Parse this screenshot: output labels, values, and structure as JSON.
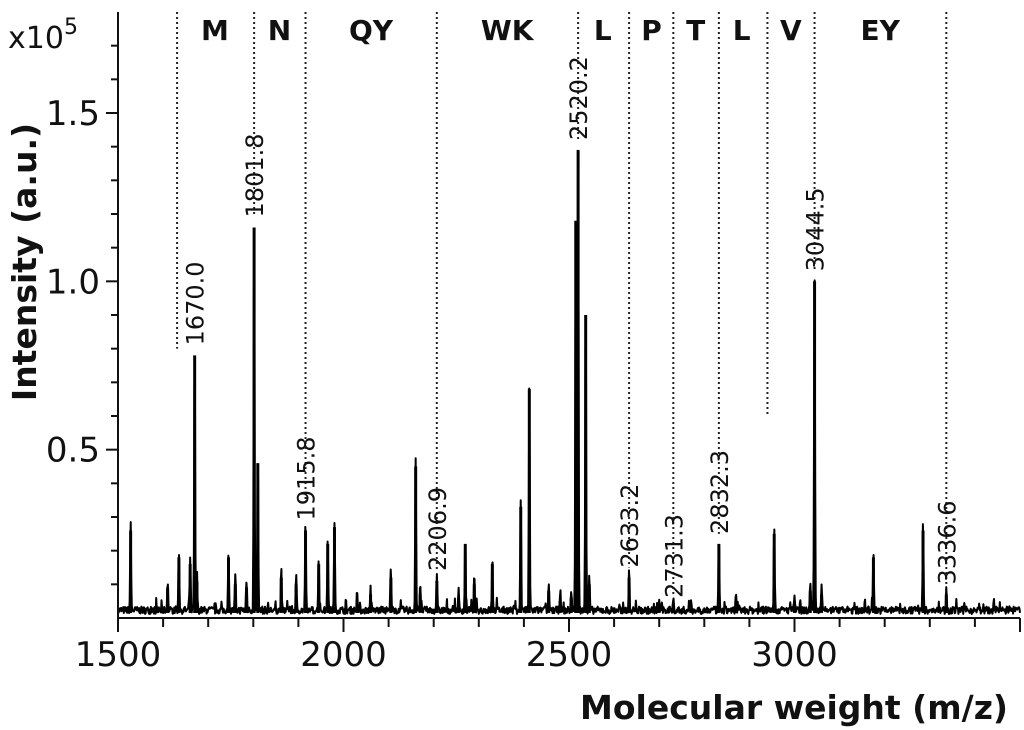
{
  "chart_data": {
    "type": "line",
    "title": "",
    "xlabel": "Molecular weight (m/z)",
    "ylabel": "Intensity (a.u.)",
    "y_multiplier": "x10",
    "y_multiplier_exponent": "5",
    "xlim": [
      1500,
      3500
    ],
    "ylim": [
      0,
      1.8
    ],
    "x_ticks": [
      1500,
      2000,
      2500,
      3000
    ],
    "x_tick_labels": [
      "1500",
      "2000",
      "2500",
      "3000"
    ],
    "y_ticks": [
      0.5,
      1.0,
      1.5
    ],
    "y_tick_labels": [
      "0.5",
      "1.0",
      "1.5"
    ],
    "grid": false,
    "line_color": "#000000",
    "labeled_peaks": [
      {
        "x": 1670.0,
        "label": "1670.0",
        "y": 0.78
      },
      {
        "x": 1801.8,
        "label": "1801.8",
        "y": 1.16
      },
      {
        "x": 1915.8,
        "label": "1915.8",
        "y": 0.26
      },
      {
        "x": 2206.9,
        "label": "2206.9",
        "y": 0.11
      },
      {
        "x": 2520.2,
        "label": "2520.2",
        "y": 1.39
      },
      {
        "x": 2633.2,
        "label": "2633.2",
        "y": 0.12
      },
      {
        "x": 2731.3,
        "label": "2731.3",
        "y": 0.03
      },
      {
        "x": 2832.3,
        "label": "2832.3",
        "y": 0.22
      },
      {
        "x": 3044.5,
        "label": "3044.5",
        "y": 1.0
      },
      {
        "x": 3336.6,
        "label": "3336.6",
        "y": 0.07
      }
    ],
    "other_peaks": [
      {
        "x": 1528,
        "y": 0.26
      },
      {
        "x": 1610,
        "y": 0.09
      },
      {
        "x": 1635,
        "y": 0.18
      },
      {
        "x": 1660,
        "y": 0.16
      },
      {
        "x": 1675,
        "y": 0.11
      },
      {
        "x": 1745,
        "y": 0.18
      },
      {
        "x": 1760,
        "y": 0.1
      },
      {
        "x": 1785,
        "y": 0.09
      },
      {
        "x": 1810,
        "y": 0.46
      },
      {
        "x": 1862,
        "y": 0.12
      },
      {
        "x": 1895,
        "y": 0.1
      },
      {
        "x": 1945,
        "y": 0.16
      },
      {
        "x": 1965,
        "y": 0.22
      },
      {
        "x": 1980,
        "y": 0.27
      },
      {
        "x": 2030,
        "y": 0.05
      },
      {
        "x": 2060,
        "y": 0.07
      },
      {
        "x": 2105,
        "y": 0.12
      },
      {
        "x": 2160,
        "y": 0.45
      },
      {
        "x": 2170,
        "y": 0.07
      },
      {
        "x": 2255,
        "y": 0.06
      },
      {
        "x": 2270,
        "y": 0.22
      },
      {
        "x": 2290,
        "y": 0.1
      },
      {
        "x": 2330,
        "y": 0.16
      },
      {
        "x": 2393,
        "y": 0.33
      },
      {
        "x": 2412,
        "y": 0.68
      },
      {
        "x": 2455,
        "y": 0.08
      },
      {
        "x": 2480,
        "y": 0.05
      },
      {
        "x": 2505,
        "y": 0.06
      },
      {
        "x": 2515,
        "y": 1.18
      },
      {
        "x": 2537,
        "y": 0.9
      },
      {
        "x": 2545,
        "y": 0.1
      },
      {
        "x": 2700,
        "y": 0.04
      },
      {
        "x": 2770,
        "y": 0.03
      },
      {
        "x": 2870,
        "y": 0.05
      },
      {
        "x": 2955,
        "y": 0.25
      },
      {
        "x": 3000,
        "y": 0.05
      },
      {
        "x": 3035,
        "y": 0.08
      },
      {
        "x": 3060,
        "y": 0.07
      },
      {
        "x": 3175,
        "y": 0.18
      },
      {
        "x": 3285,
        "y": 0.26
      }
    ],
    "sequence_markers": [
      {
        "x": 1631,
        "y_top": 1.8,
        "y_bottom": 0.8
      },
      {
        "x": 1801.8,
        "y_top": 1.8,
        "y_bottom": 1.2
      },
      {
        "x": 1915.8,
        "y_top": 1.8,
        "y_bottom": 0.35
      },
      {
        "x": 2206.9,
        "y_top": 1.8,
        "y_bottom": 0.14
      },
      {
        "x": 2520.2,
        "y_top": 1.8,
        "y_bottom": 1.42
      },
      {
        "x": 2633.2,
        "y_top": 1.8,
        "y_bottom": 0.15
      },
      {
        "x": 2731.3,
        "y_top": 1.8,
        "y_bottom": 0.07
      },
      {
        "x": 2832.3,
        "y_top": 1.8,
        "y_bottom": 0.25
      },
      {
        "x": 2940,
        "y_top": 1.8,
        "y_bottom": 0.6
      },
      {
        "x": 3044.5,
        "y_top": 1.8,
        "y_bottom": 1.03
      },
      {
        "x": 3336.6,
        "y_top": 1.8,
        "y_bottom": 0.1
      }
    ],
    "residues": [
      {
        "label": "M",
        "x": 1715
      },
      {
        "label": "N",
        "x": 1858
      },
      {
        "label": "QY",
        "x": 2061
      },
      {
        "label": "WK",
        "x": 2363
      },
      {
        "label": "L",
        "x": 2575
      },
      {
        "label": "P",
        "x": 2683
      },
      {
        "label": "T",
        "x": 2781
      },
      {
        "label": "L",
        "x": 2883
      },
      {
        "label": "V",
        "x": 2992
      },
      {
        "label": "EY",
        "x": 3190
      }
    ]
  }
}
